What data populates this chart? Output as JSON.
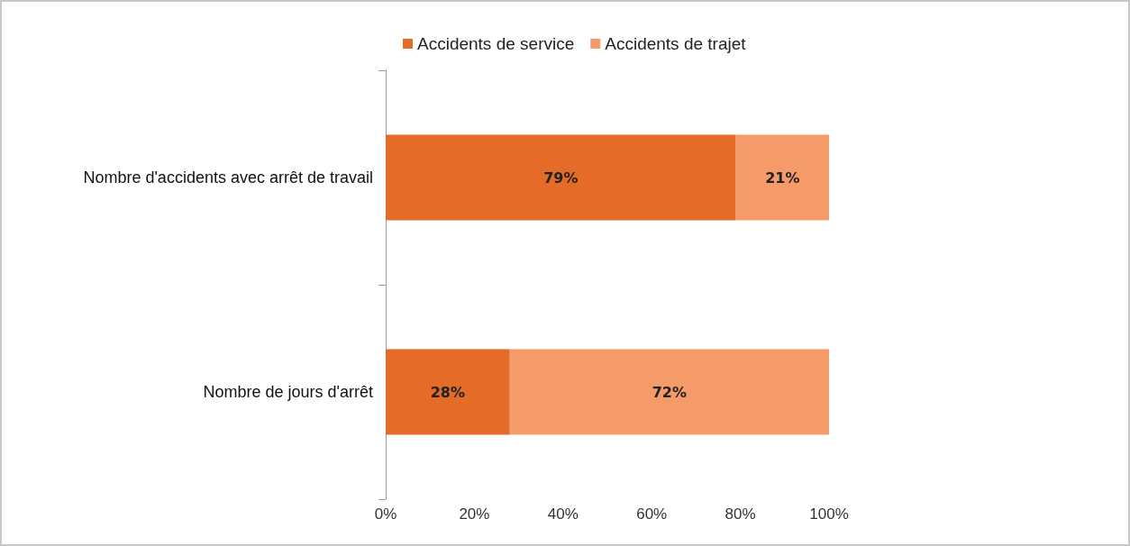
{
  "chart_data": {
    "type": "bar",
    "orientation": "horizontal",
    "stacked": true,
    "categories": [
      "Nombre d'accidents avec arrêt de travail",
      "Nombre de jours d'arrêt"
    ],
    "series": [
      {
        "name": "Accidents de service",
        "color": "#e46c28",
        "values": [
          79,
          28
        ],
        "value_labels": [
          "79%",
          "28%"
        ]
      },
      {
        "name": "Accidents de trajet",
        "color": "#f59b6a",
        "values": [
          21,
          72
        ],
        "value_labels": [
          "21%",
          "72%"
        ]
      }
    ],
    "xlim": [
      0,
      100
    ],
    "xticks": [
      {
        "value": 0,
        "label": "0%"
      },
      {
        "value": 20,
        "label": "20%"
      },
      {
        "value": 40,
        "label": "40%"
      },
      {
        "value": 60,
        "label": "60%"
      },
      {
        "value": 80,
        "label": "80%"
      },
      {
        "value": 100,
        "label": "100%"
      }
    ],
    "grid": false,
    "legend": "top"
  }
}
